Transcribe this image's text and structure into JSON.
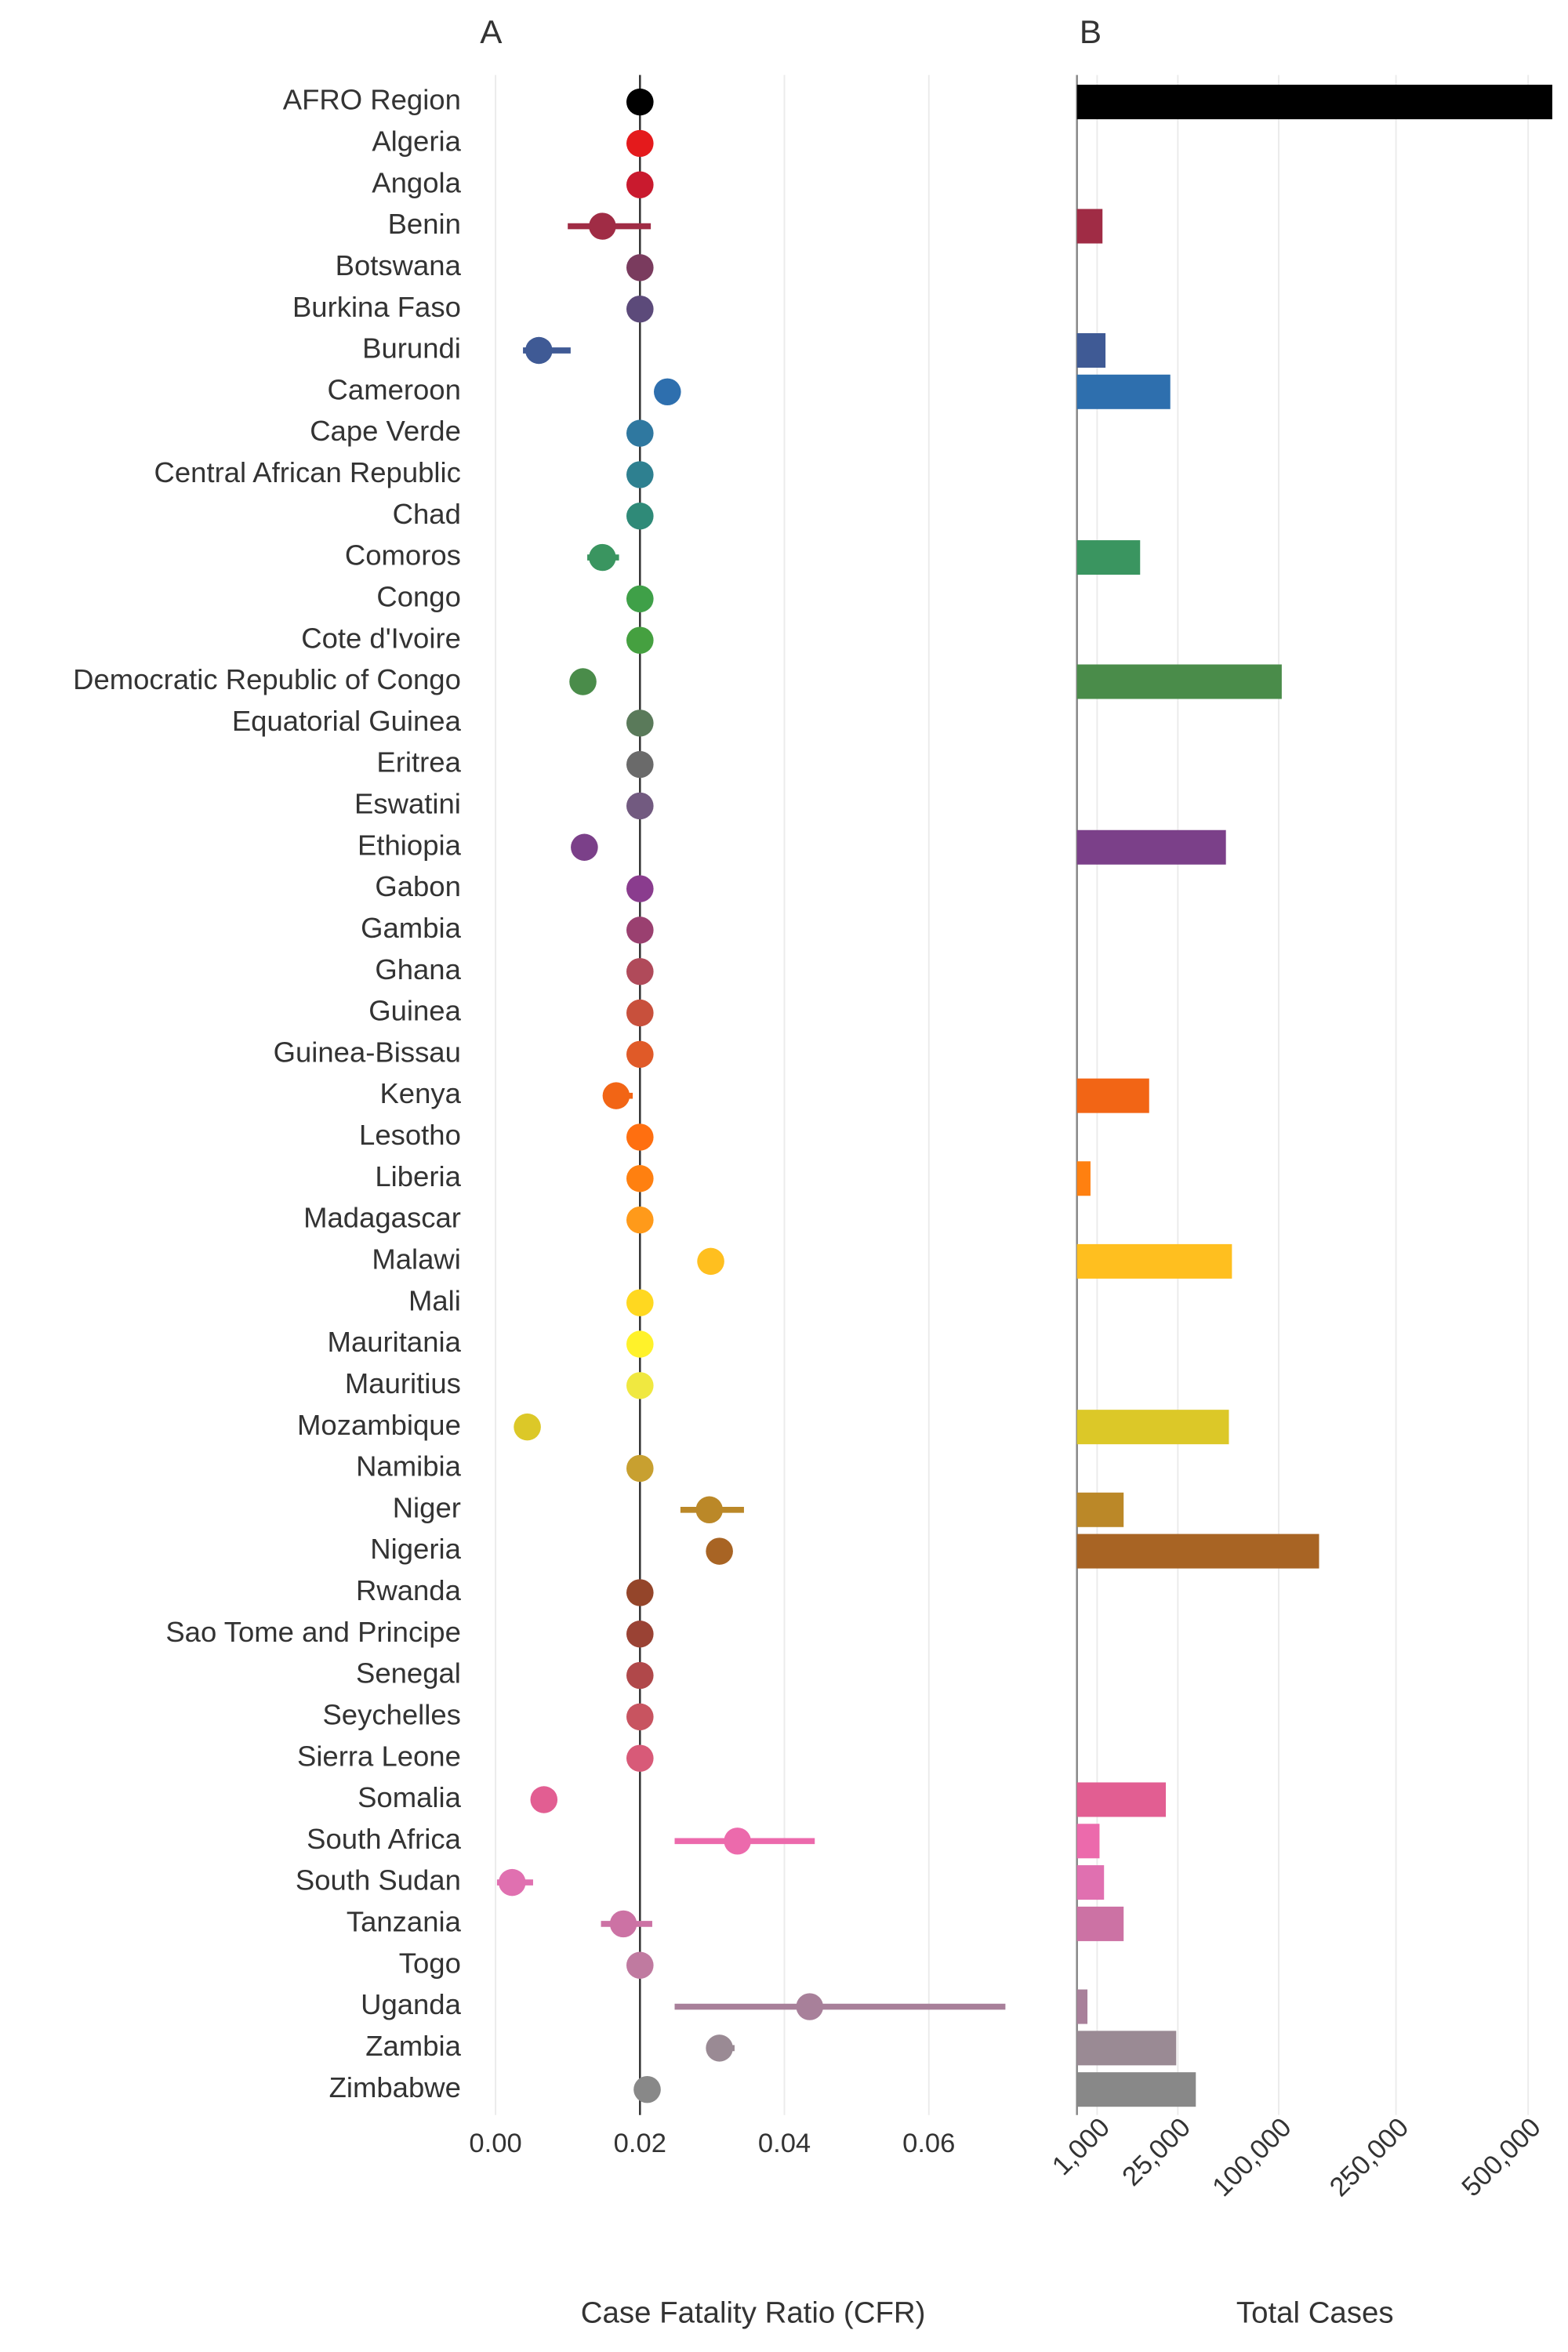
{
  "chart_data": [
    {
      "type": "dot",
      "title": "A",
      "x_label": "Case Fatality Ratio (CFR)",
      "xlim": [
        -0.002,
        0.073
      ],
      "xticks": [
        {
          "value": 0,
          "label": "0.00"
        },
        {
          "value": 0.02,
          "label": "0.02"
        },
        {
          "value": 0.04,
          "label": "0.04"
        },
        {
          "value": 0.06,
          "label": "0.06"
        }
      ],
      "ref_line": 0.02,
      "grid": true,
      "categories": [
        "AFRO Region",
        "Algeria",
        "Angola",
        "Benin",
        "Botswana",
        "Burkina Faso",
        "Burundi",
        "Cameroon",
        "Cape Verde",
        "Central African Republic",
        "Chad",
        "Comoros",
        "Congo",
        "Cote d'Ivoire",
        "Democratic Republic of Congo",
        "Equatorial Guinea",
        "Eritrea",
        "Eswatini",
        "Ethiopia",
        "Gabon",
        "Gambia",
        "Ghana",
        "Guinea",
        "Guinea-Bissau",
        "Kenya",
        "Lesotho",
        "Liberia",
        "Madagascar",
        "Malawi",
        "Mali",
        "Mauritania",
        "Mauritius",
        "Mozambique",
        "Namibia",
        "Niger",
        "Nigeria",
        "Rwanda",
        "Sao Tome and Principe",
        "Senegal",
        "Seychelles",
        "Sierra Leone",
        "Somalia",
        "South Africa",
        "South Sudan",
        "Tanzania",
        "Togo",
        "Uganda",
        "Zambia",
        "Zimbabwe"
      ],
      "colors": [
        "#000000",
        "#e41a1c",
        "#c91a2e",
        "#a02c45",
        "#7a3b5e",
        "#5c4a7a",
        "#3f5a95",
        "#2e6fae",
        "#2f78a0",
        "#2e8090",
        "#2f8a78",
        "#3a9560",
        "#3fa048",
        "#45a040",
        "#4a8c4a",
        "#5a7a5a",
        "#6a6a6a",
        "#725a80",
        "#7b4089",
        "#8a3c8e",
        "#9a4070",
        "#b04a5a",
        "#c8503c",
        "#e05a28",
        "#f26515",
        "#ff6f10",
        "#ff8010",
        "#ff9a1a",
        "#ffbf1f",
        "#ffd820",
        "#fff22a",
        "#f0e840",
        "#dcc828",
        "#c8a030",
        "#bb8828",
        "#a86424",
        "#94452a",
        "#9a4234",
        "#b0484a",
        "#c85460",
        "#d85a78",
        "#e25e92",
        "#ec6aac",
        "#e070b0",
        "#cc72a4",
        "#c07aa0",
        "#a8809a",
        "#9a8a94",
        "#888888"
      ],
      "values": [
        0.02,
        0.02,
        0.02,
        0.0148,
        0.02,
        0.02,
        0.006,
        0.0238,
        0.02,
        0.02,
        0.02,
        0.0148,
        0.02,
        0.02,
        0.0121,
        0.02,
        0.02,
        0.02,
        0.0123,
        0.02,
        0.02,
        0.02,
        0.02,
        0.02,
        0.0167,
        0.02,
        0.02,
        0.02,
        0.0298,
        0.02,
        0.02,
        0.02,
        0.0044,
        0.02,
        0.0296,
        0.031,
        0.02,
        0.02,
        0.02,
        0.02,
        0.02,
        0.0067,
        0.0335,
        0.0023,
        0.0177,
        0.02,
        0.0435,
        0.031,
        0.021
      ],
      "lower": [
        null,
        null,
        null,
        0.01,
        null,
        null,
        0.0038,
        null,
        null,
        null,
        null,
        0.0127,
        null,
        null,
        null,
        null,
        null,
        null,
        null,
        null,
        null,
        null,
        null,
        null,
        0.015,
        null,
        null,
        null,
        null,
        null,
        null,
        null,
        null,
        null,
        0.0256,
        null,
        null,
        null,
        null,
        null,
        null,
        null,
        0.0248,
        0.0002,
        0.0146,
        null,
        0.0248,
        0.0294,
        null
      ],
      "upper": [
        null,
        null,
        null,
        0.0215,
        null,
        null,
        0.0104,
        null,
        null,
        null,
        null,
        0.0171,
        null,
        null,
        null,
        null,
        null,
        null,
        null,
        null,
        null,
        null,
        null,
        null,
        0.019,
        null,
        null,
        null,
        null,
        null,
        null,
        null,
        null,
        null,
        0.0344,
        null,
        null,
        null,
        null,
        null,
        null,
        null,
        0.0442,
        0.0052,
        0.0217,
        null,
        0.0706,
        0.0331,
        null
      ]
    },
    {
      "type": "bar",
      "title": "B",
      "x_label": "Total Cases",
      "scale": "sqrt",
      "xlim": [
        0,
        560000
      ],
      "xticks": [
        {
          "value": 1000,
          "label": "1,000"
        },
        {
          "value": 25000,
          "label": "25,000"
        },
        {
          "value": 100000,
          "label": "100,000"
        },
        {
          "value": 250000,
          "label": "250,000"
        },
        {
          "value": 500000,
          "label": "500,000"
        }
      ],
      "grid": true,
      "values": [
        555000,
        null,
        null,
        1600,
        null,
        null,
        2000,
        21400,
        null,
        null,
        null,
        9800,
        null,
        null,
        103000,
        null,
        null,
        null,
        54500,
        null,
        null,
        null,
        null,
        null,
        12800,
        null,
        450,
        null,
        59000,
        null,
        null,
        null,
        56700,
        null,
        5350,
        144000,
        null,
        null,
        null,
        null,
        null,
        19400,
        1250,
        1800,
        5350,
        null,
        270,
        24200,
        34700
      ]
    }
  ]
}
